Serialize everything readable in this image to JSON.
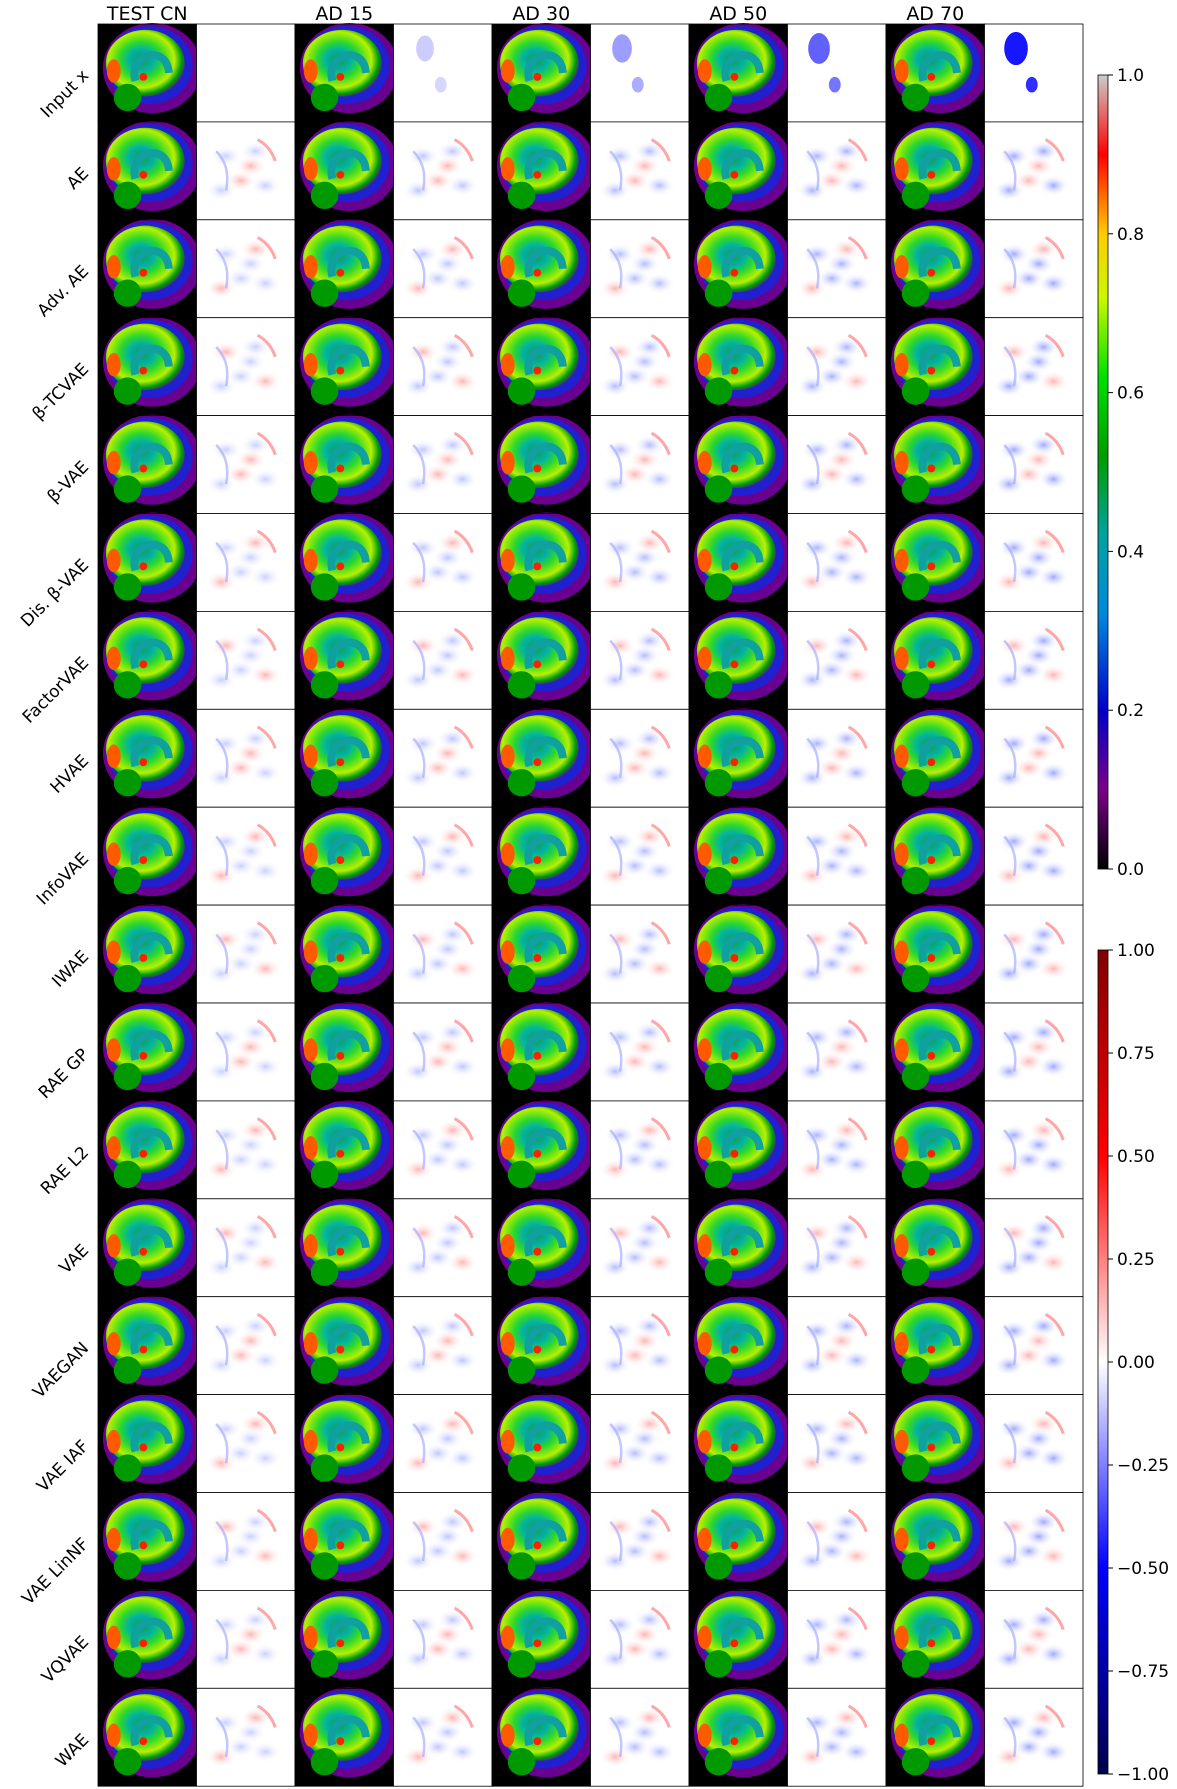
{
  "columns": [
    "TEST CN",
    "AD 15",
    "AD 30",
    "AD 50",
    "AD 70"
  ],
  "rows": [
    "Input x",
    "AE",
    "Adv. AE",
    "β-TCVAE",
    "β-VAE",
    "Dis. β-VAE",
    "FactorVAE",
    "HVAE",
    "InfoVAE",
    "IWAE",
    "RAE GP",
    "RAE L2",
    "VAE",
    "VAEGAN",
    "VAE IAF",
    "VAE LinNF",
    "VQVAE",
    "WAE"
  ],
  "colorbar_intensity": {
    "label_values": [
      "1.0",
      "0.8",
      "0.6",
      "0.4",
      "0.2",
      "0.0"
    ],
    "colormap": "nipy_spectral",
    "range": [
      0.0,
      1.0
    ]
  },
  "colorbar_difference": {
    "label_values": [
      "1.00",
      "0.75",
      "0.50",
      "0.25",
      "0.00",
      "−0.25",
      "−0.50",
      "−0.75",
      "−1.00"
    ],
    "colormap": "seismic",
    "range": [
      -1.0,
      1.0
    ]
  },
  "colors": {
    "background": "#ffffff",
    "frame": "#000000"
  }
}
